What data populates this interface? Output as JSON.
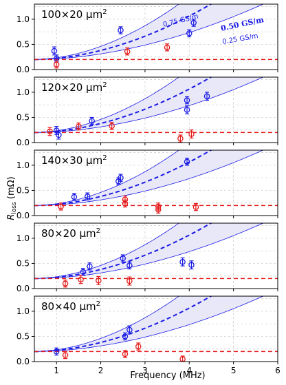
{
  "chart_data": {
    "type": "scatter",
    "xlabel": "Frequency (MHz)",
    "ylabel_main": "R",
    "ylabel_sub": "loss",
    "ylabel_unit": " (mΩ)",
    "xlim": [
      0.5,
      6
    ],
    "ylim": [
      0,
      1.3
    ],
    "x_ticks": [
      "1",
      "2",
      "3",
      "4",
      "5",
      "6"
    ],
    "y_ticks": [
      "0.0",
      "0.5",
      "1.0"
    ],
    "grid": true,
    "colors": {
      "blue": "#1a1ae6",
      "red": "#e61a1a",
      "band_fill": "#e8e8f8",
      "band_edge": "#1a1ae6"
    },
    "band_labels": [
      "0.75 GS/m",
      "0.50 GS/m",
      "0.25 GS/m"
    ],
    "panels": [
      {
        "title": "100×20 μm",
        "title_sup": "2",
        "show_band_labels": true,
        "red_baseline": 0.2,
        "blue_points": [
          {
            "x": 0.95,
            "y": 0.37,
            "err": 0.08
          },
          {
            "x": 1.0,
            "y": 0.22,
            "err": 0.07
          },
          {
            "x": 2.45,
            "y": 0.78,
            "err": 0.07
          },
          {
            "x": 4.0,
            "y": 0.72,
            "err": 0.07
          },
          {
            "x": 4.1,
            "y": 0.93,
            "err": 0.07
          }
        ],
        "red_points": [
          {
            "x": 1.0,
            "y": 0.1,
            "err": 0.07
          },
          {
            "x": 2.6,
            "y": 0.36,
            "err": 0.07
          },
          {
            "x": 3.5,
            "y": 0.44,
            "err": 0.07
          }
        ]
      },
      {
        "title": "120×20 μm",
        "title_sup": "2",
        "show_band_labels": false,
        "red_baseline": 0.2,
        "blue_points": [
          {
            "x": 1.0,
            "y": 0.24,
            "err": 0.08
          },
          {
            "x": 1.05,
            "y": 0.15,
            "err": 0.08
          },
          {
            "x": 1.8,
            "y": 0.43,
            "err": 0.07
          },
          {
            "x": 3.95,
            "y": 0.65,
            "err": 0.08
          },
          {
            "x": 3.95,
            "y": 0.84,
            "err": 0.07
          },
          {
            "x": 4.4,
            "y": 0.92,
            "err": 0.08
          }
        ],
        "red_points": [
          {
            "x": 0.85,
            "y": 0.22,
            "err": 0.08
          },
          {
            "x": 1.5,
            "y": 0.32,
            "err": 0.07
          },
          {
            "x": 2.25,
            "y": 0.33,
            "err": 0.07
          },
          {
            "x": 3.8,
            "y": 0.08,
            "err": 0.07
          },
          {
            "x": 4.05,
            "y": 0.17,
            "err": 0.08
          }
        ]
      },
      {
        "title": "140×30 μm",
        "title_sup": "2",
        "show_band_labels": false,
        "red_baseline": 0.2,
        "blue_points": [
          {
            "x": 1.4,
            "y": 0.37,
            "err": 0.07
          },
          {
            "x": 1.7,
            "y": 0.38,
            "err": 0.07
          },
          {
            "x": 2.4,
            "y": 0.68,
            "err": 0.07
          },
          {
            "x": 2.45,
            "y": 0.75,
            "err": 0.07
          },
          {
            "x": 3.95,
            "y": 1.07,
            "err": 0.07
          }
        ],
        "red_points": [
          {
            "x": 1.1,
            "y": 0.18,
            "err": 0.07
          },
          {
            "x": 2.55,
            "y": 0.24,
            "err": 0.07
          },
          {
            "x": 2.55,
            "y": 0.32,
            "err": 0.07
          },
          {
            "x": 3.3,
            "y": 0.12,
            "err": 0.07
          },
          {
            "x": 3.3,
            "y": 0.18,
            "err": 0.07
          },
          {
            "x": 4.15,
            "y": 0.17,
            "err": 0.07
          }
        ]
      },
      {
        "title": "80×20 μm",
        "title_sup": "2",
        "show_band_labels": false,
        "red_baseline": 0.2,
        "blue_points": [
          {
            "x": 1.6,
            "y": 0.33,
            "err": 0.07
          },
          {
            "x": 1.75,
            "y": 0.44,
            "err": 0.07
          },
          {
            "x": 2.5,
            "y": 0.6,
            "err": 0.07
          },
          {
            "x": 2.65,
            "y": 0.46,
            "err": 0.07
          },
          {
            "x": 3.85,
            "y": 0.53,
            "err": 0.08
          },
          {
            "x": 4.05,
            "y": 0.47,
            "err": 0.08
          }
        ],
        "red_points": [
          {
            "x": 1.2,
            "y": 0.1,
            "err": 0.07
          },
          {
            "x": 1.55,
            "y": 0.18,
            "err": 0.08
          },
          {
            "x": 1.95,
            "y": 0.16,
            "err": 0.08
          },
          {
            "x": 2.65,
            "y": 0.15,
            "err": 0.08
          }
        ]
      },
      {
        "title": "80×40 μm",
        "title_sup": "2",
        "show_band_labels": false,
        "red_baseline": 0.2,
        "blue_points": [
          {
            "x": 1.0,
            "y": 0.2,
            "err": 0.07
          },
          {
            "x": 2.55,
            "y": 0.5,
            "err": 0.07
          },
          {
            "x": 2.65,
            "y": 0.63,
            "err": 0.08
          }
        ],
        "red_points": [
          {
            "x": 1.2,
            "y": 0.13,
            "err": 0.07
          },
          {
            "x": 2.55,
            "y": 0.15,
            "err": 0.07
          },
          {
            "x": 2.85,
            "y": 0.3,
            "err": 0.07
          },
          {
            "x": 3.85,
            "y": 0.05,
            "err": 0.06
          }
        ]
      }
    ]
  }
}
